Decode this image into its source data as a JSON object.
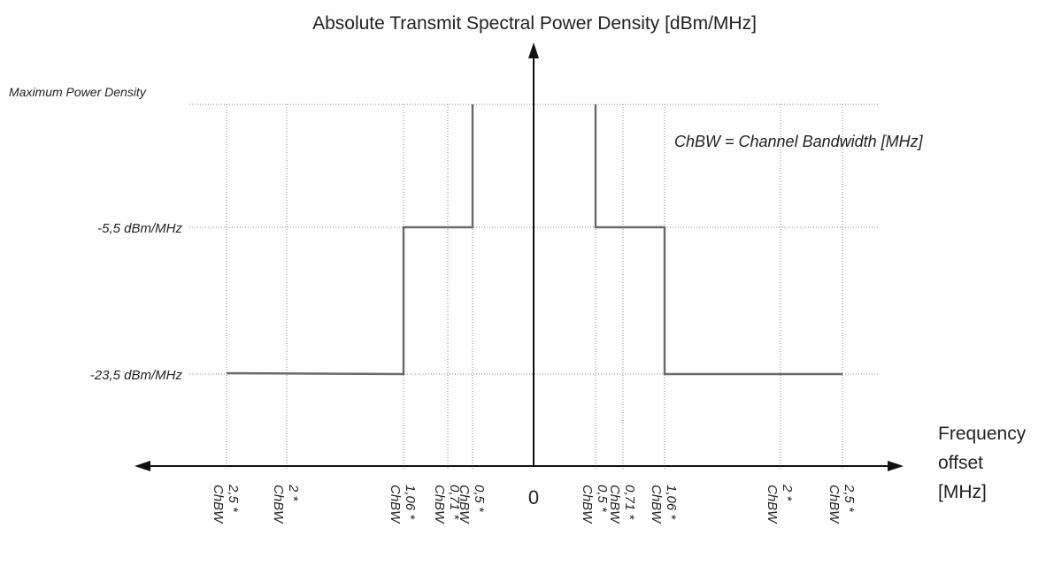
{
  "diagram": {
    "title": "Absolute Transmit Spectral Power Density [dBm/MHz]",
    "x_axis_label": [
      "Frequency",
      "offset",
      "[MHz]"
    ],
    "note": "ChBW = Channel Bandwidth [MHz]",
    "levels": {
      "max": "Maximum Power Density",
      "mid": "-5,5 dBm/MHz",
      "low": "-23,5 dBm/MHz"
    },
    "x_ticks": [
      {
        "id": "neg-2-5",
        "line1": "2,5 *",
        "line2": "ChBW"
      },
      {
        "id": "neg-2",
        "line1": "2 *",
        "line2": "ChBW"
      },
      {
        "id": "neg-1-06",
        "line1": "1,06 *",
        "line2": "ChBW"
      },
      {
        "id": "neg-0-71",
        "line1": "0,71 *",
        "line2": "ChBW"
      },
      {
        "id": "neg-0-5",
        "line1": "0,5 *",
        "line2": "ChBW"
      },
      {
        "id": "pos-0-5",
        "line1": "0,5 *",
        "line2": "ChBW"
      },
      {
        "id": "pos-0-71",
        "line1": "0,71 *",
        "line2": "ChBW"
      },
      {
        "id": "pos-1-06",
        "line1": "1,06 *",
        "line2": "ChBW"
      },
      {
        "id": "pos-2",
        "line1": "2 *",
        "line2": "ChBW"
      },
      {
        "id": "pos-2-5",
        "line1": "2,5 *",
        "line2": "ChBW"
      }
    ],
    "origin_label": "0"
  }
}
